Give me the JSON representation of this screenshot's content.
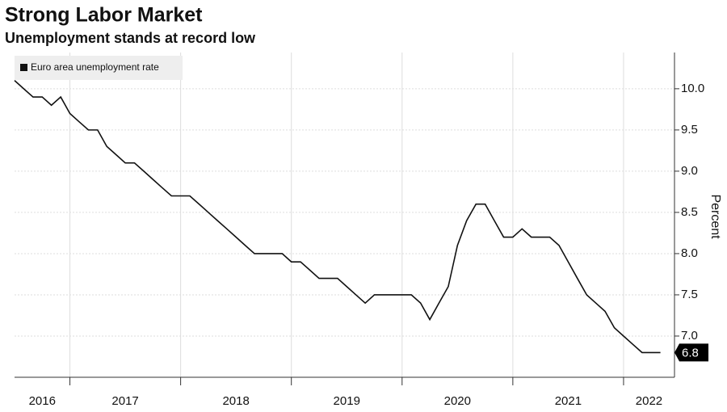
{
  "chart_data": {
    "type": "line",
    "title": "Strong Labor Market",
    "subtitle": "Unemployment stands at record low",
    "y_label": "Percent",
    "x": [
      2016.5,
      2016.583,
      2016.667,
      2016.75,
      2016.833,
      2016.917,
      2017,
      2017.083,
      2017.167,
      2017.25,
      2017.333,
      2017.417,
      2017.5,
      2017.583,
      2017.667,
      2017.75,
      2017.833,
      2017.917,
      2018,
      2018.083,
      2018.167,
      2018.25,
      2018.333,
      2018.417,
      2018.5,
      2018.583,
      2018.667,
      2018.75,
      2018.833,
      2018.917,
      2019,
      2019.083,
      2019.167,
      2019.25,
      2019.333,
      2019.417,
      2019.5,
      2019.583,
      2019.667,
      2019.75,
      2019.833,
      2019.917,
      2020,
      2020.083,
      2020.167,
      2020.25,
      2020.333,
      2020.417,
      2020.5,
      2020.583,
      2020.667,
      2020.75,
      2020.833,
      2020.917,
      2021,
      2021.083,
      2021.167,
      2021.25,
      2021.333,
      2021.417,
      2021.5,
      2021.583,
      2021.667,
      2021.75,
      2021.833,
      2021.917,
      2022,
      2022.083,
      2022.167,
      2022.25,
      2022.333
    ],
    "series": [
      {
        "name": "Euro area unemployment rate",
        "color": "#111111",
        "values": [
          10.1,
          10.0,
          9.9,
          9.9,
          9.8,
          9.9,
          9.7,
          9.6,
          9.5,
          9.5,
          9.3,
          9.2,
          9.1,
          9.1,
          9.0,
          8.9,
          8.8,
          8.7,
          8.7,
          8.7,
          8.6,
          8.5,
          8.4,
          8.3,
          8.2,
          8.1,
          8.0,
          8.0,
          8.0,
          8.0,
          7.9,
          7.9,
          7.8,
          7.7,
          7.7,
          7.7,
          7.6,
          7.5,
          7.4,
          7.5,
          7.5,
          7.5,
          7.5,
          7.5,
          7.4,
          7.2,
          7.4,
          7.6,
          8.1,
          8.4,
          8.6,
          8.6,
          8.4,
          8.2,
          8.2,
          8.3,
          8.2,
          8.2,
          8.2,
          8.1,
          7.9,
          7.7,
          7.5,
          7.4,
          7.3,
          7.1,
          7.0,
          6.9,
          6.8,
          6.8,
          6.8
        ]
      }
    ],
    "xlim": [
      2016.5,
      2022.46
    ],
    "xticks": [
      {
        "value": 2016,
        "label": "2016"
      },
      {
        "value": 2017,
        "label": "2017"
      },
      {
        "value": 2018,
        "label": "2018"
      },
      {
        "value": 2019,
        "label": "2019"
      },
      {
        "value": 2020,
        "label": "2020"
      },
      {
        "value": 2021,
        "label": "2021"
      },
      {
        "value": 2022,
        "label": "2022"
      }
    ],
    "ylim": [
      6.5,
      10.42
    ],
    "yticks": [
      {
        "value": 7,
        "label": "7.0"
      },
      7.5,
      {
        "value": 8,
        "label": "8.0"
      },
      8.5,
      {
        "value": 9,
        "label": "9.0"
      },
      9.5,
      {
        "value": 10,
        "label": "10.0"
      }
    ],
    "grid": true,
    "legend": "top-left"
  }
}
